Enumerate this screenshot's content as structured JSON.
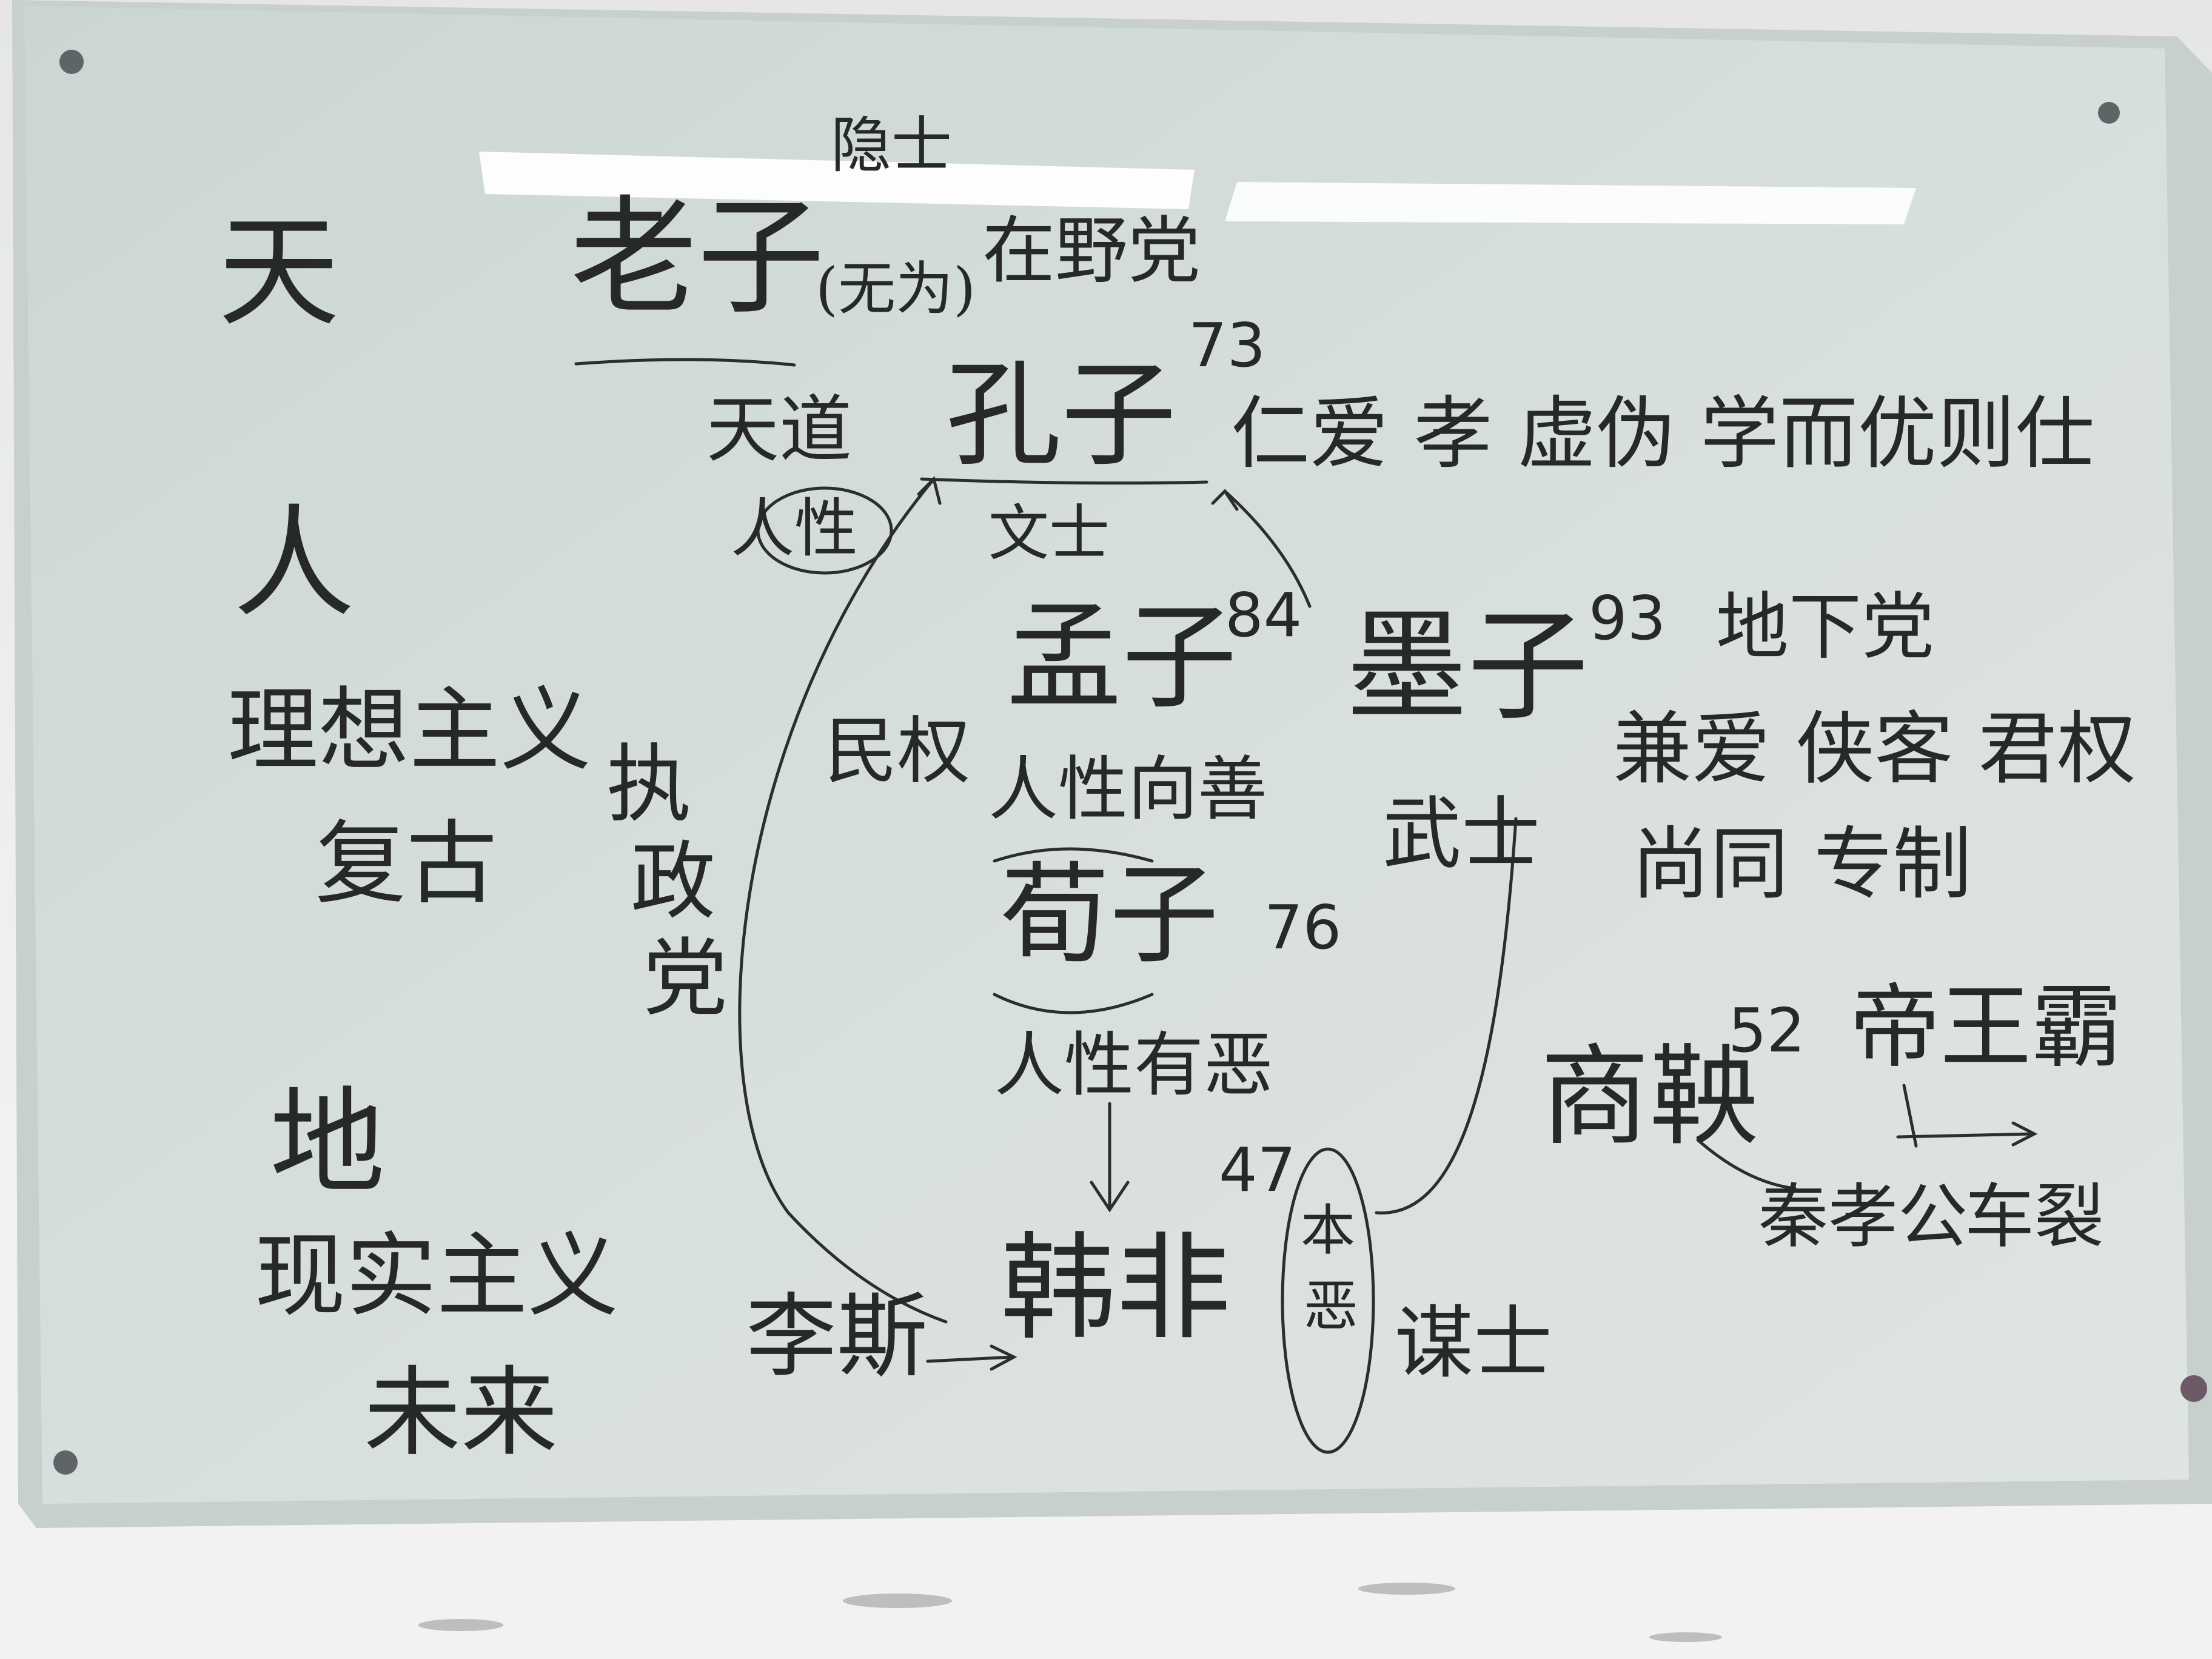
{
  "board": {
    "frame_color": "#c9d2ce",
    "glass_color": "#d4ddd9",
    "ink_color": "#26282a",
    "light_color": "#ffffff"
  },
  "left_column": {
    "heaven": "天",
    "human": "人",
    "idealism": "理想主义",
    "restore_past": "复古",
    "earth": "地",
    "realism": "现实主义",
    "future": "未来",
    "ruling_party": [
      "执",
      "政",
      "党"
    ]
  },
  "laozi": {
    "hermit": "隐士",
    "name": "老子",
    "note": "(无为)",
    "party": "在野党"
  },
  "confucius": {
    "age": "73",
    "name": "孔子",
    "heaven_way": "天道",
    "human_nature": "人性",
    "scholar": "文士",
    "traits": "仁爱  孝  虚伪  学而优则仕"
  },
  "mencius": {
    "age": "84",
    "name": "孟子",
    "people_power": "民权",
    "nature": "人性向善"
  },
  "xunzi": {
    "age": "76",
    "name": "荀子",
    "nature": "人性有恶"
  },
  "mozi": {
    "age": "93",
    "name": "墨子",
    "party": "地下党",
    "line1": "兼爱  侠客  君权",
    "line2": "尚同  专制",
    "warrior": "武士"
  },
  "hanfei": {
    "age": "47",
    "name": "韩非",
    "lisi": "李斯",
    "essence": [
      "本",
      "恶"
    ],
    "strategist": "谋士"
  },
  "shangyang": {
    "age": "52",
    "name": "商鞅",
    "ways": "帝王霸",
    "duke": "秦孝公",
    "fate": "车裂"
  }
}
